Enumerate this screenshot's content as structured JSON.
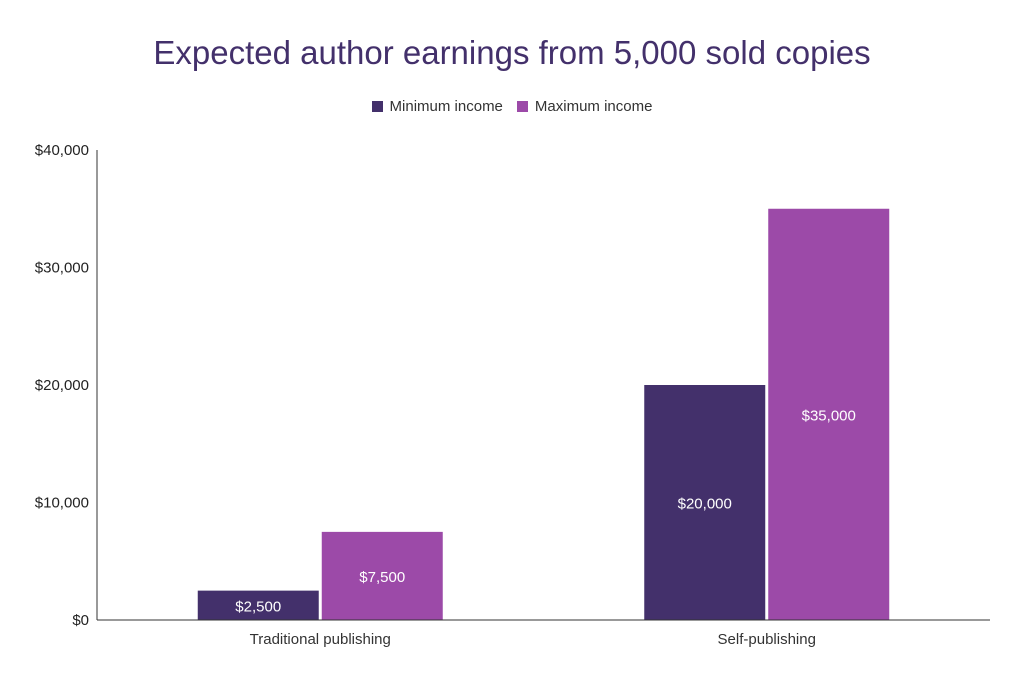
{
  "chart_data": {
    "type": "bar",
    "title": "Expected author earnings from 5,000 sold copies",
    "categories": [
      "Traditional publishing",
      "Self-publishing"
    ],
    "series": [
      {
        "name": "Minimum income",
        "color": "#43306b",
        "values": [
          2500,
          20000
        ],
        "labels": [
          "$2,500",
          "$20,000"
        ]
      },
      {
        "name": "Maximum income",
        "color": "#9c4aa8",
        "values": [
          7500,
          35000
        ],
        "labels": [
          "$7,500",
          "$35,000"
        ]
      }
    ],
    "ylim": [
      0,
      40000
    ],
    "yticks": [
      0,
      10000,
      20000,
      30000,
      40000
    ],
    "ytick_labels": [
      "$0",
      "$10,000",
      "$20,000",
      "$30,000",
      "$40,000"
    ],
    "xlabel": "",
    "ylabel": "",
    "grid": false,
    "legend_position": "top"
  }
}
